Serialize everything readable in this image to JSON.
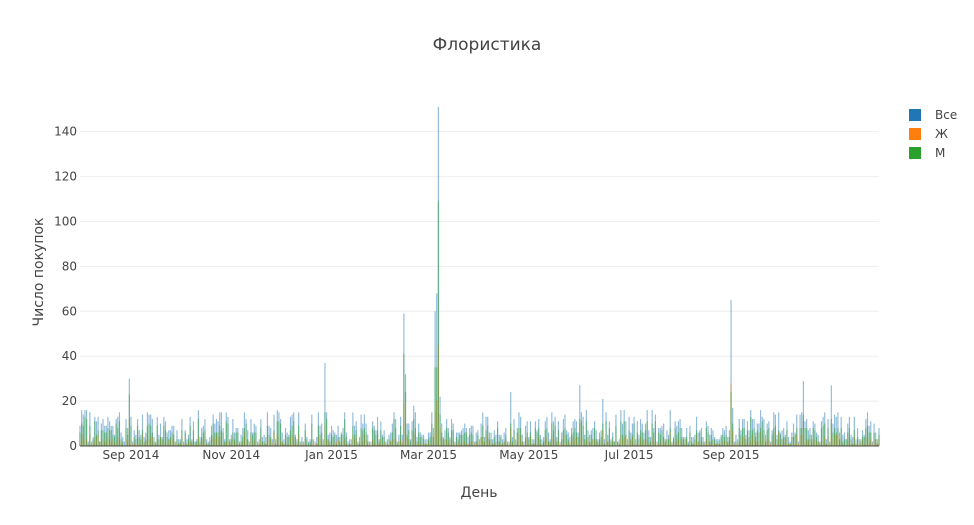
{
  "chart_data": {
    "type": "bar",
    "title": "Флористика",
    "xlabel": "День",
    "ylabel": "Число покупок",
    "x_range": [
      "2014-08-01",
      "2015-11-30"
    ],
    "ylim": [
      0,
      155
    ],
    "y_ticks": [
      0,
      20,
      40,
      60,
      80,
      100,
      120,
      140
    ],
    "x_ticks": [
      {
        "date": "2014-09-01",
        "label": "Sep 2014"
      },
      {
        "date": "2014-11-01",
        "label": "Nov 2014"
      },
      {
        "date": "2015-01-01",
        "label": "Jan 2015"
      },
      {
        "date": "2015-03-01",
        "label": "Mar 2015"
      },
      {
        "date": "2015-05-01",
        "label": "May 2015"
      },
      {
        "date": "2015-07-01",
        "label": "Jul 2015"
      },
      {
        "date": "2015-09-01",
        "label": "Sep 2015"
      }
    ],
    "grid": true,
    "legend_position": "top-right",
    "series_names": [
      "Все",
      "Ж",
      "М"
    ],
    "colors": [
      "#1f77b4",
      "#ff7f0e",
      "#2ca02c"
    ],
    "series_opacity": 0.5,
    "daily_peaks": [
      {
        "date": "2014-08-31",
        "values": [
          30,
          12,
          23
        ]
      },
      {
        "date": "2014-12-28",
        "values": [
          37,
          9,
          15
        ]
      },
      {
        "date": "2015-02-14",
        "values": [
          59,
          19,
          41
        ]
      },
      {
        "date": "2015-02-15",
        "values": [
          32,
          10,
          24
        ]
      },
      {
        "date": "2015-02-20",
        "values": [
          18,
          6,
          12
        ]
      },
      {
        "date": "2015-03-05",
        "values": [
          60,
          15,
          35
        ]
      },
      {
        "date": "2015-03-06",
        "values": [
          68,
          20,
          35
        ]
      },
      {
        "date": "2015-03-07",
        "values": [
          151,
          45,
          109
        ]
      },
      {
        "date": "2015-03-08",
        "values": [
          22,
          8,
          14
        ]
      },
      {
        "date": "2015-04-20",
        "values": [
          24,
          8,
          10
        ]
      },
      {
        "date": "2015-06-01",
        "values": [
          27,
          10,
          12
        ]
      },
      {
        "date": "2015-06-15",
        "values": [
          21,
          7,
          10
        ]
      },
      {
        "date": "2015-09-01",
        "values": [
          65,
          28,
          24
        ]
      },
      {
        "date": "2015-09-02",
        "values": [
          17,
          7,
          10
        ]
      },
      {
        "date": "2015-10-15",
        "values": [
          29,
          11,
          14
        ]
      },
      {
        "date": "2015-11-01",
        "values": [
          27,
          10,
          12
        ]
      }
    ],
    "typical_daily_range": {
      "Все": [
        2,
        16
      ],
      "Ж": [
        0,
        6
      ],
      "М": [
        1,
        10
      ]
    }
  }
}
